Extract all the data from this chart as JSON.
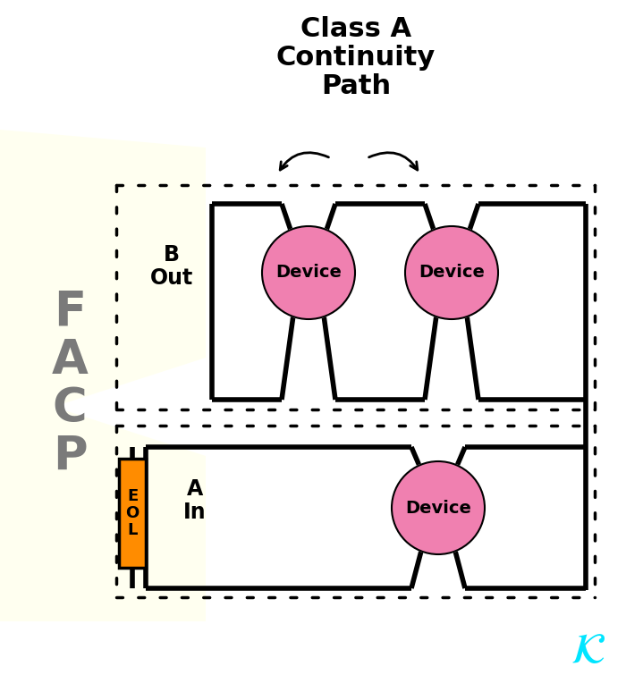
{
  "title": "Class A\nContinuity\nPath",
  "title_fontsize": 22,
  "title_fontweight": "bold",
  "bg_color": "#ffffff",
  "facp_bg": "#fffff0",
  "facp_text": "F\nA\nC\nP",
  "facp_text_color": "#7a7a7a",
  "facp_fontsize": 38,
  "b_out_text": "B\nOut",
  "a_in_text": "A\nIn",
  "label_fontsize": 17,
  "label_fontweight": "bold",
  "device_color": "#f080b0",
  "device_label": "Device",
  "device_fontsize": 14,
  "device_fontweight": "bold",
  "eol_color": "#ff8c00",
  "eol_text": "E\nO\nL",
  "eol_fontsize": 13,
  "eol_fontweight": "bold",
  "solid_lw": 4.0,
  "dot_lw": 2.5,
  "cyan_color": "#00e5ff",
  "dot_style": [
    2,
    5
  ]
}
